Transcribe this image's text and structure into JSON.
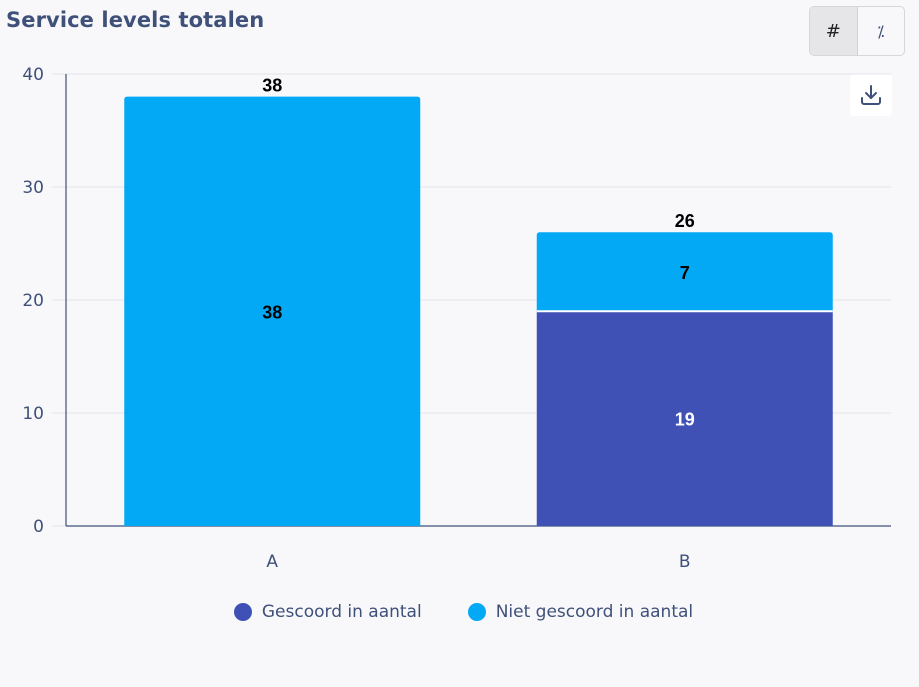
{
  "header": {
    "title": "Service levels totalen"
  },
  "toolbar": {
    "count_toggle_label": "#",
    "percent_toggle_label": "⁒",
    "active_mode": "count",
    "download_icon": "download-icon"
  },
  "colors": {
    "scored": "#3f51b5",
    "not_scored": "#03a9f4",
    "axis": "#3f5079",
    "grid": "#e3e4ea"
  },
  "chart_data": {
    "type": "bar",
    "stacked": true,
    "title": "Service levels totalen",
    "xlabel": "",
    "ylabel": "",
    "categories": [
      "A",
      "B"
    ],
    "series": [
      {
        "name": "Gescoord in aantal",
        "values": [
          0,
          19
        ]
      },
      {
        "name": "Niet gescoord in aantal",
        "values": [
          38,
          7
        ]
      }
    ],
    "totals": [
      38,
      26
    ],
    "ylim": [
      0,
      40
    ],
    "yticks": [
      0,
      10,
      20,
      30,
      40
    ],
    "grid": true,
    "legend_position": "bottom-center"
  }
}
